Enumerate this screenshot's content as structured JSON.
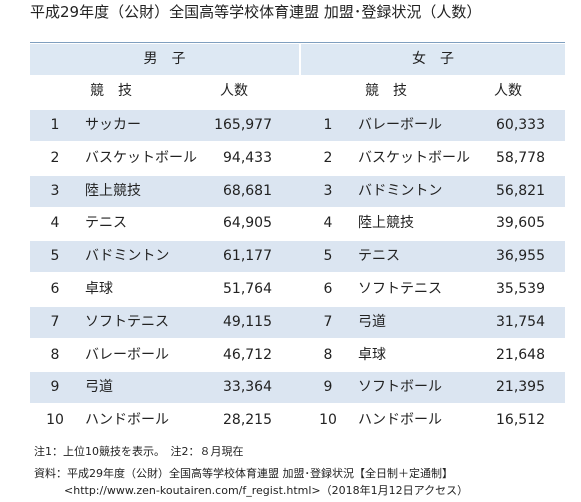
{
  "title": "平成29年度（公財）全国高等学校体育連盟 加盟･登録状況（人数）",
  "table": {
    "groups": [
      "男　子",
      "女　子"
    ],
    "headers": [
      "競　技",
      "人数",
      "競　技",
      "人数"
    ],
    "rows": [
      [
        "1",
        "サッカー",
        "165,977",
        "1",
        "バレーボール",
        "60,333"
      ],
      [
        "2",
        "バスケットボール",
        "94,433",
        "2",
        "バスケットボール",
        "58,778"
      ],
      [
        "3",
        "陸上競技",
        "68,681",
        "3",
        "バドミントン",
        "56,821"
      ],
      [
        "4",
        "テニス",
        "64,905",
        "4",
        "陸上競技",
        "39,605"
      ],
      [
        "5",
        "バドミントン",
        "61,177",
        "5",
        "テニス",
        "36,955"
      ],
      [
        "6",
        "卓球",
        "51,764",
        "6",
        "ソフトテニス",
        "35,539"
      ],
      [
        "7",
        "ソフトテニス",
        "49,115",
        "7",
        "弓道",
        "31,754"
      ],
      [
        "8",
        "バレーボール",
        "46,712",
        "8",
        "卓球",
        "21,648"
      ],
      [
        "9",
        "弓道",
        "33,364",
        "9",
        "ソフトボール",
        "21,395"
      ],
      [
        "10",
        "ハンドボール",
        "28,215",
        "10",
        "ハンドボール",
        "16,512"
      ]
    ]
  },
  "notes": "注1：上位10競技を表示。　注2：８月現在",
  "source": [
    "資料：平成29年度（公財）全国高等学校体育連盟 加盟･登録状況【全日制＋定通制】",
    "<http://www.zen-koutairen.com/f_regist.html>（2018年1月12日アクセス）"
  ]
}
